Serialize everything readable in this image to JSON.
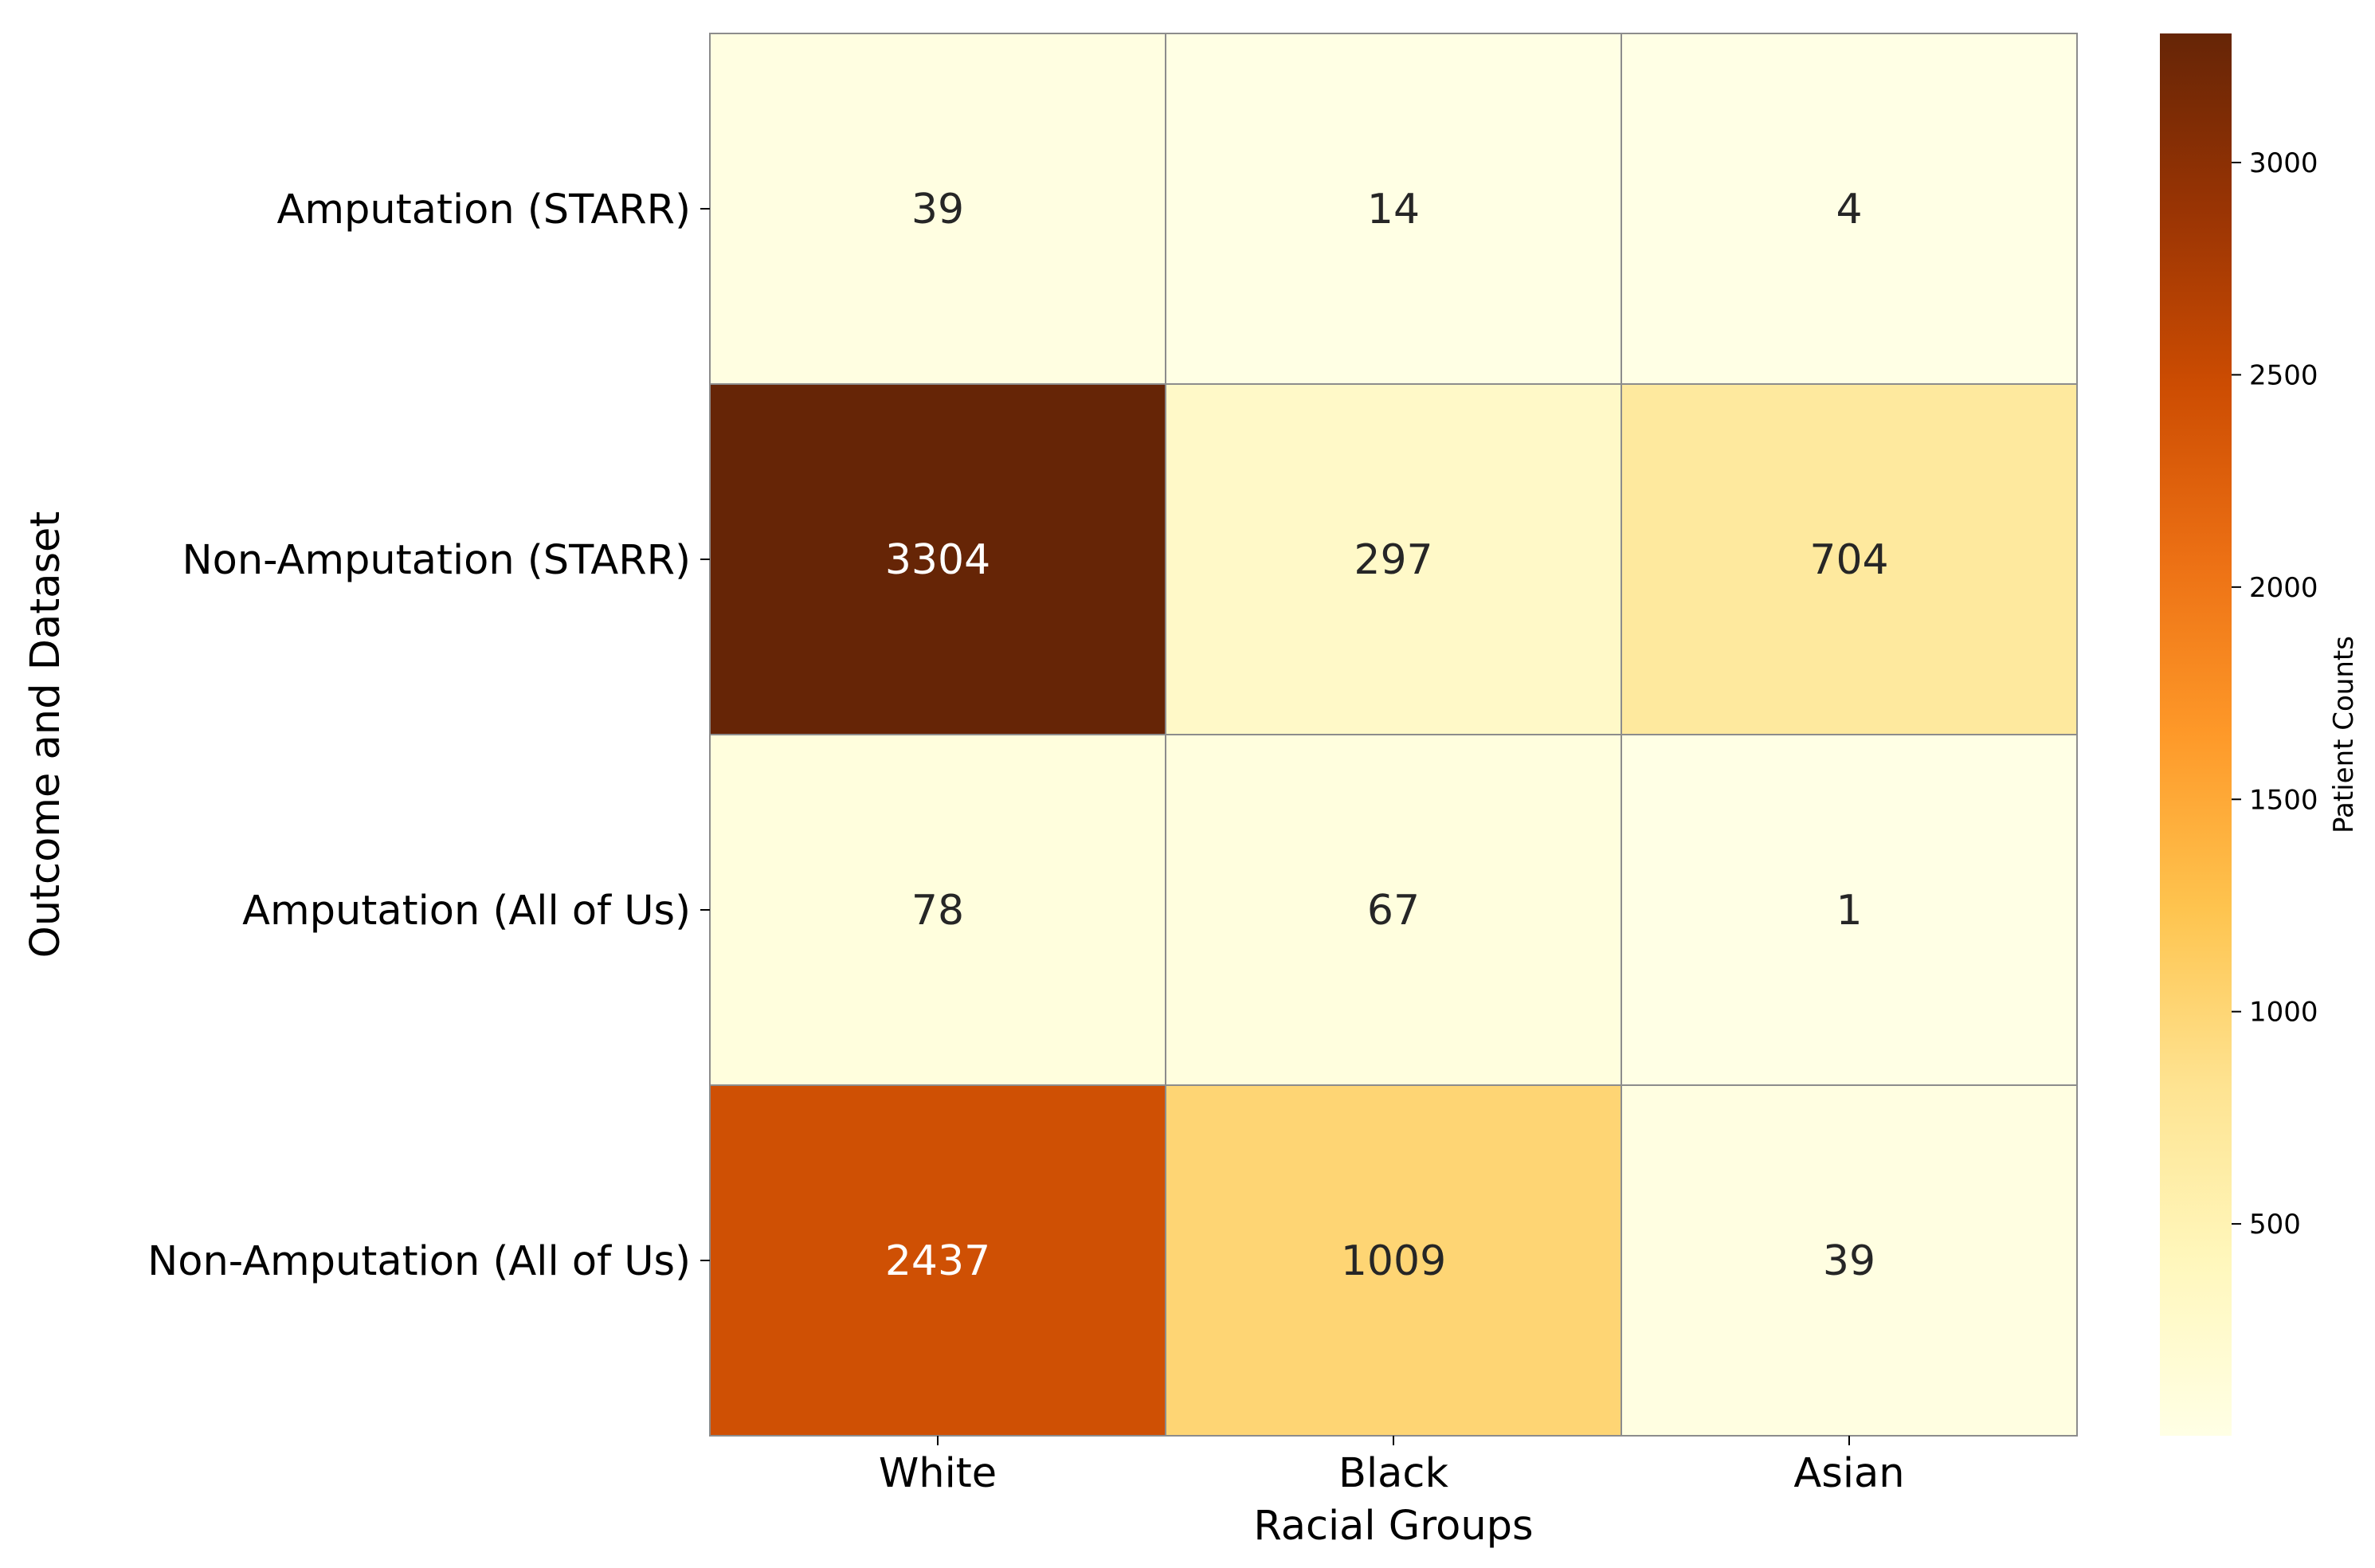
{
  "chart_data": {
    "type": "heatmap",
    "title": "",
    "xlabel": "Racial Groups",
    "ylabel": "Outcome and Dataset",
    "columns": [
      "White",
      "Black",
      "Asian"
    ],
    "rows": [
      "Amputation (STARR)",
      "Non-Amputation (STARR)",
      "Amputation (All of Us)",
      "Non-Amputation (All of Us)"
    ],
    "values": [
      [
        39,
        14,
        4
      ],
      [
        3304,
        297,
        704
      ],
      [
        78,
        67,
        1
      ],
      [
        2437,
        1009,
        39
      ]
    ],
    "colorbar": {
      "label": "Patient Counts",
      "range": [
        1,
        3304
      ],
      "ticks": [
        500,
        1000,
        1500,
        2000,
        2500,
        3000
      ],
      "colormap": "YlOrBr"
    },
    "grid": true,
    "gridline_color": "#8c8c8c"
  }
}
